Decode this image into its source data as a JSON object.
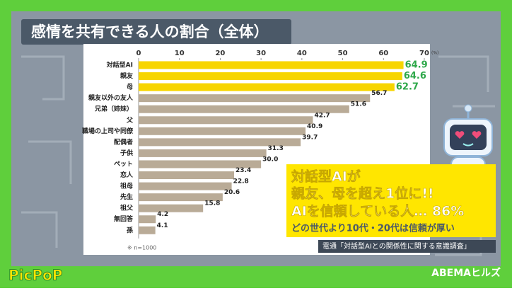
{
  "chart_data": {
    "type": "hbar",
    "title": "感情を共有できる人の割合（全体）",
    "categories": [
      "対話型AI",
      "親友",
      "母",
      "親友以外の友人",
      "兄弟（姉妹）",
      "父",
      "職場の上司や同僚",
      "配偶者",
      "子供",
      "ペット",
      "恋人",
      "祖母",
      "先生",
      "祖父",
      "無回答",
      "孫"
    ],
    "values": [
      64.9,
      64.6,
      62.7,
      56.7,
      51.6,
      42.7,
      40.9,
      39.7,
      31.3,
      30.0,
      23.4,
      22.8,
      20.6,
      15.8,
      4.2,
      4.1
    ],
    "value_labels": [
      "64.9",
      "64.6",
      "62.7",
      "56.7",
      "51.6",
      "42.7",
      "40.9",
      "39.7",
      "31.3",
      "30.0",
      "23.4",
      "22.8",
      "20.6",
      "15.8",
      "4.2",
      "4.1"
    ],
    "colors": [
      "#f7d500",
      "#f7d500",
      "#f7d500",
      "#b9ab97",
      "#b9ab97",
      "#b9ab97",
      "#b9ab97",
      "#b9ab97",
      "#b9ab97",
      "#b9ab97",
      "#b9ab97",
      "#b9ab97",
      "#b9ab97",
      "#b9ab97",
      "#b9ab97",
      "#b9ab97"
    ],
    "label_colors": [
      "#2ea84a",
      "#2ea84a",
      "#2ea84a",
      "#222222",
      "#222222",
      "#222222",
      "#222222",
      "#222222",
      "#222222",
      "#222222",
      "#222222",
      "#222222",
      "#222222",
      "#222222",
      "#222222",
      "#222222"
    ],
    "xlim": [
      0,
      70
    ],
    "xticks": [
      0,
      10,
      20,
      30,
      40,
      50,
      60,
      70
    ],
    "unit": "(%)",
    "note": "※ n=1000"
  },
  "callout": {
    "lines": [
      "対話型AIが",
      "親友、母を超え1位に!!",
      "AIを信頼している人… 86%"
    ],
    "sub": "どの世代より10代・20代は信頼が厚い"
  },
  "source": "電通「対話型AIとの関係性に関する意識調査」",
  "brand_left": "PicPoP",
  "brand_right": "ABEMAヒルズ"
}
